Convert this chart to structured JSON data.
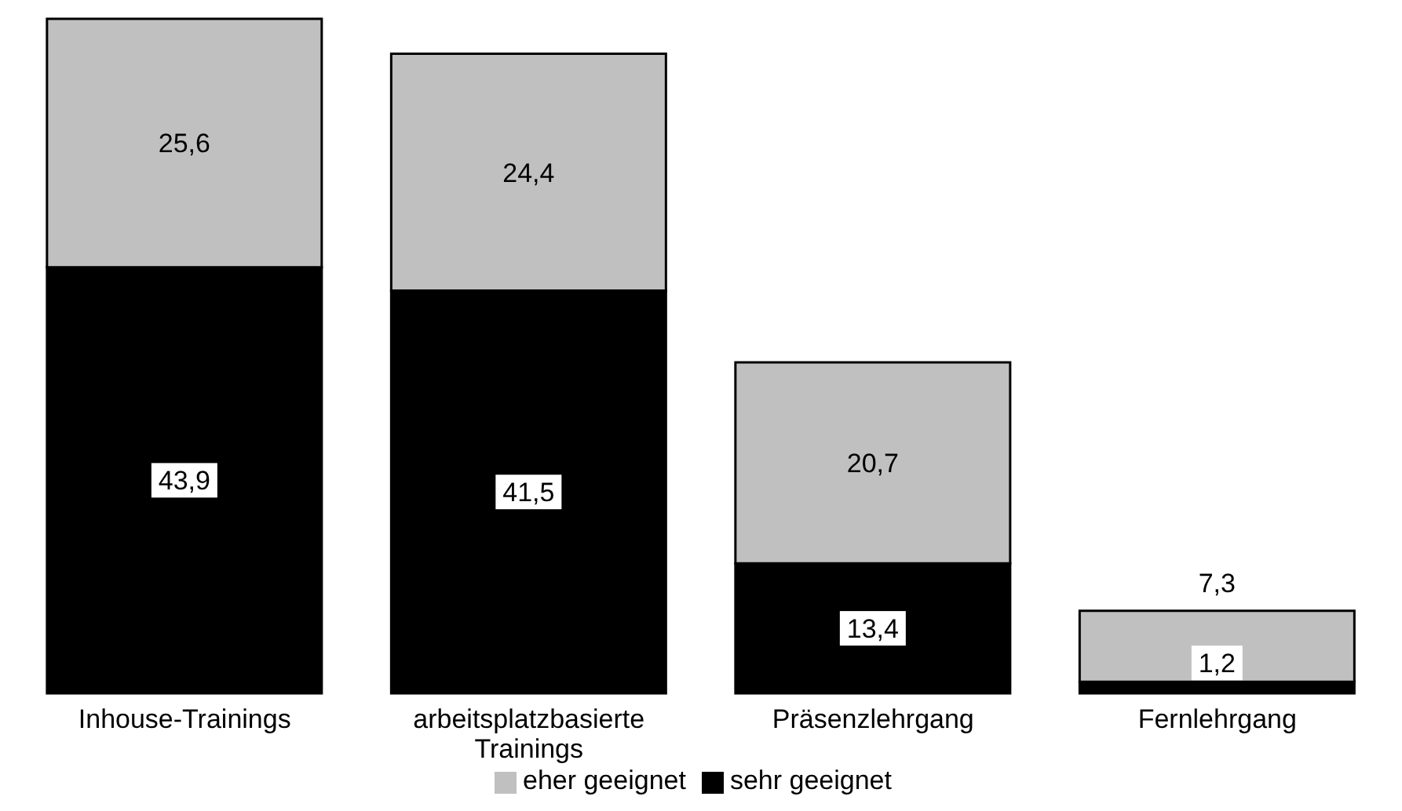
{
  "chart_data": {
    "type": "bar",
    "stacked": true,
    "categories": [
      "Inhouse-Trainings",
      "arbeitsplatzbasierte Trainings",
      "Präsenzlehrgang",
      "Fernlehrgang"
    ],
    "series": [
      {
        "name": "sehr geeignet",
        "color": "#000000",
        "values": [
          43.9,
          41.5,
          13.4,
          1.2
        ],
        "value_labels": [
          "43,9",
          "41,5",
          "13,4",
          "1,2"
        ]
      },
      {
        "name": "eher geeignet",
        "color": "#c0c0c0",
        "values": [
          25.6,
          24.4,
          20.7,
          7.3
        ],
        "value_labels": [
          "25,6",
          "24,4",
          "20,7",
          "7,3"
        ]
      }
    ],
    "data_labels": true,
    "legend": "bottom",
    "grid": false
  }
}
